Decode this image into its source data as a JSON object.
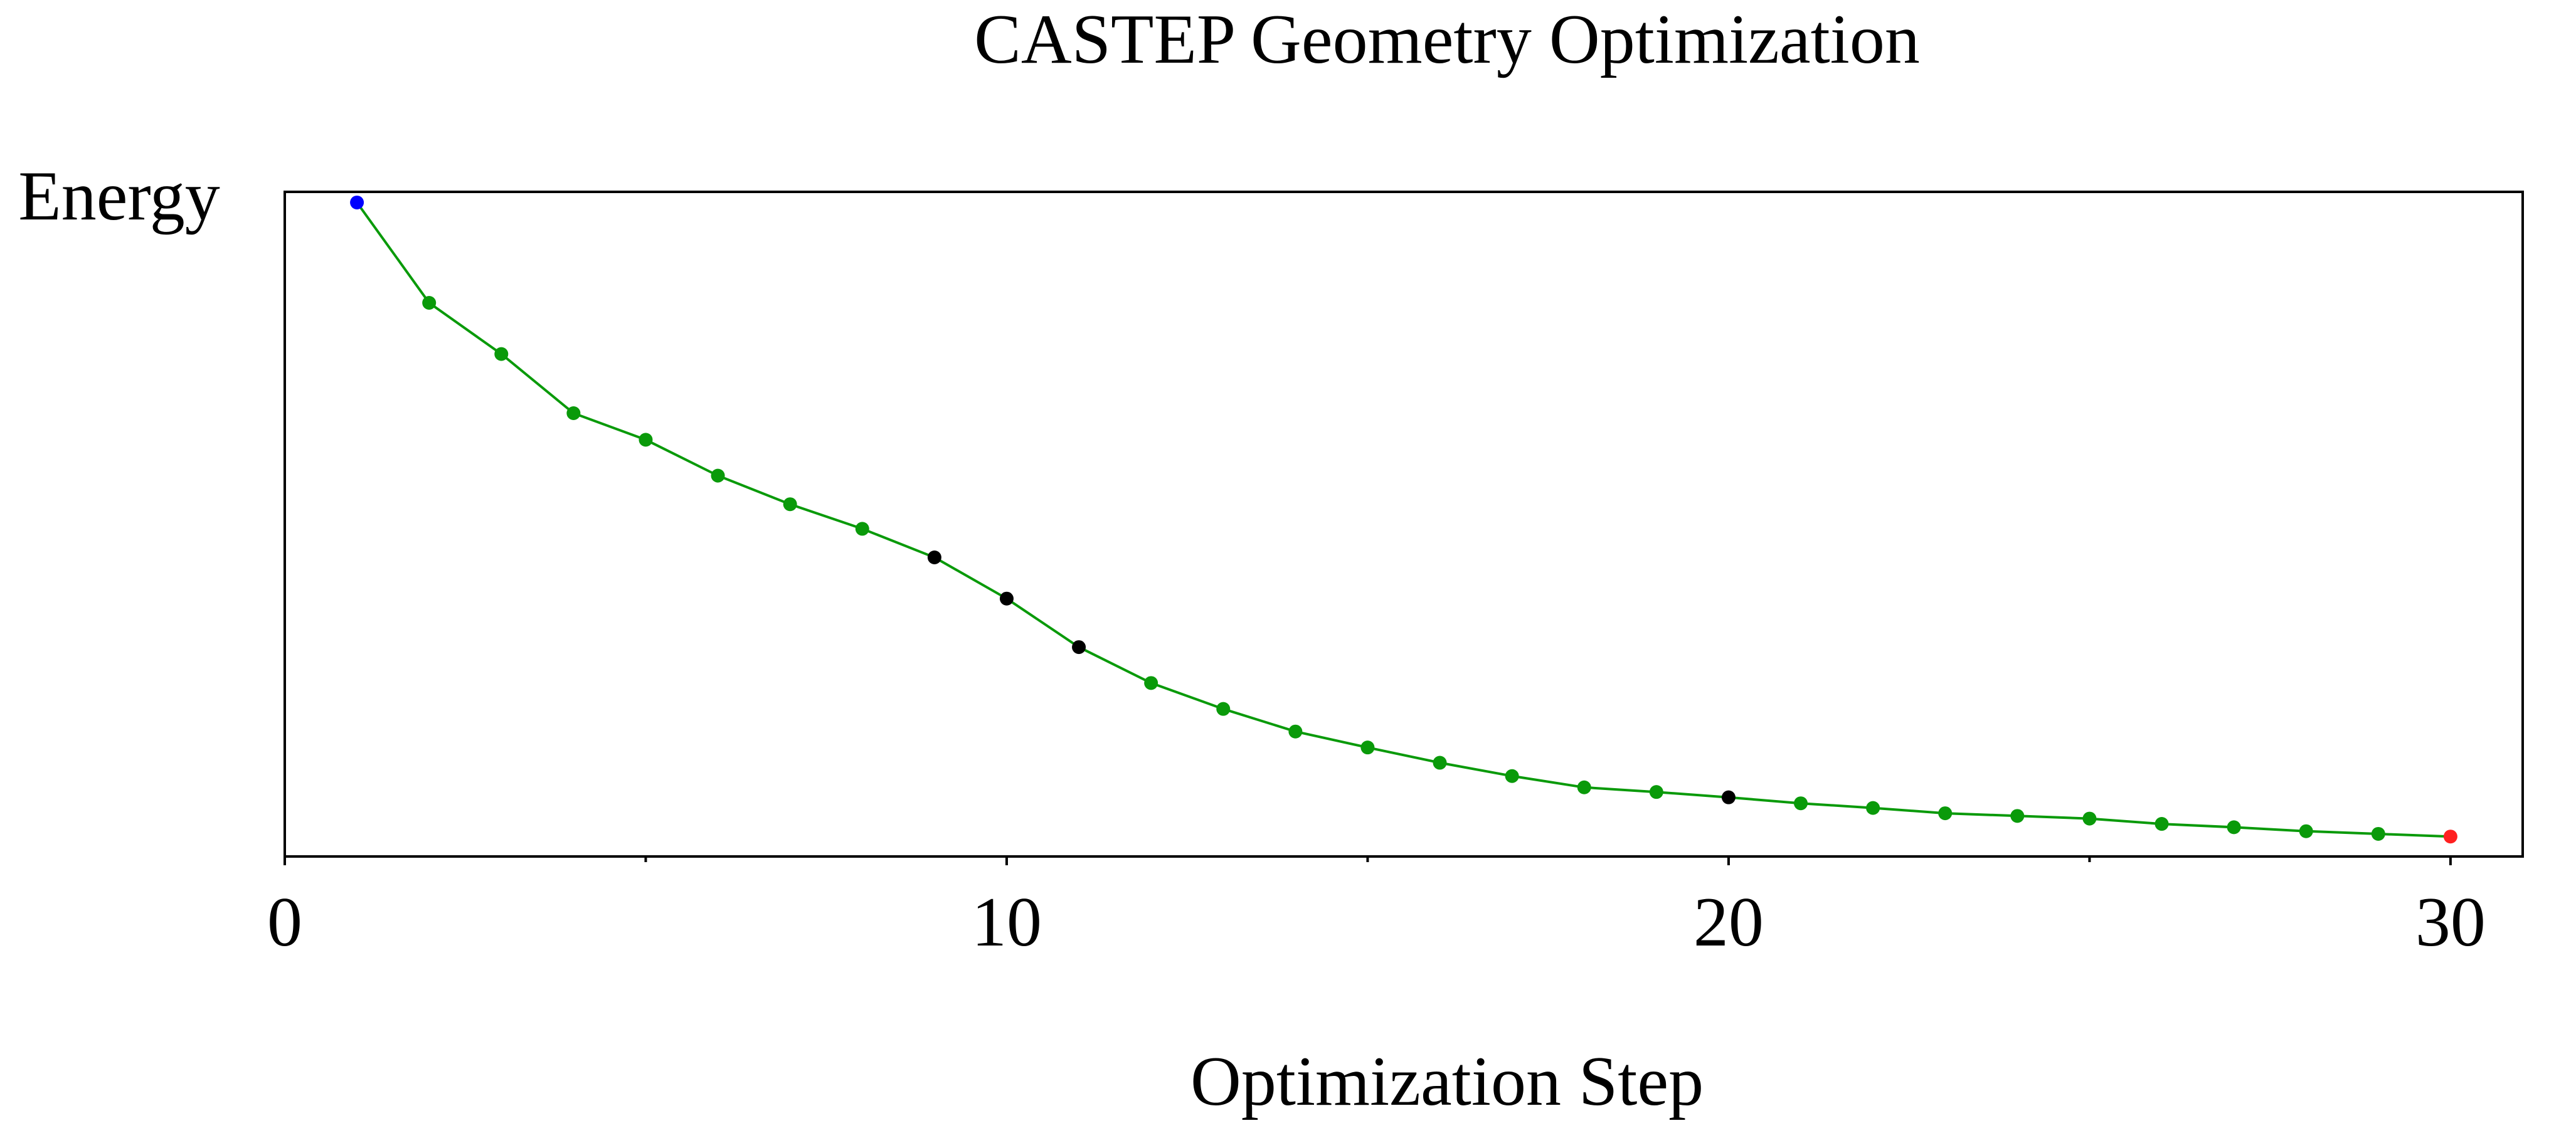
{
  "chart_data": {
    "type": "line",
    "title": "CASTEP Geometry Optimization",
    "xlabel": "Optimization Step",
    "ylabel": "Energy",
    "xlim": [
      0,
      31
    ],
    "ylim": [
      0,
      1
    ],
    "x_ticks": [
      0,
      10,
      20,
      30
    ],
    "x_minor_ticks": [
      5,
      15,
      25
    ],
    "y_tick_labels_shown": false,
    "grid": false,
    "series": [
      {
        "name": "Energy",
        "line_color": "#0a9a0a",
        "x": [
          1,
          2,
          3,
          4,
          5,
          6,
          7,
          8,
          9,
          10,
          11,
          12,
          13,
          14,
          15,
          16,
          17,
          18,
          19,
          20,
          21,
          22,
          23,
          24,
          25,
          26,
          27,
          28,
          29,
          30
        ],
        "values": [
          0.984,
          0.833,
          0.756,
          0.667,
          0.627,
          0.573,
          0.53,
          0.493,
          0.45,
          0.388,
          0.315,
          0.261,
          0.222,
          0.188,
          0.164,
          0.141,
          0.121,
          0.104,
          0.097,
          0.089,
          0.08,
          0.073,
          0.065,
          0.061,
          0.057,
          0.049,
          0.044,
          0.038,
          0.034,
          0.03
        ],
        "point_colors": [
          "#0000ff",
          "#0a9a0a",
          "#0a9a0a",
          "#0a9a0a",
          "#0a9a0a",
          "#0a9a0a",
          "#0a9a0a",
          "#0a9a0a",
          "#000000",
          "#000000",
          "#000000",
          "#0a9a0a",
          "#0a9a0a",
          "#0a9a0a",
          "#0a9a0a",
          "#0a9a0a",
          "#0a9a0a",
          "#0a9a0a",
          "#0a9a0a",
          "#000000",
          "#0a9a0a",
          "#0a9a0a",
          "#0a9a0a",
          "#0a9a0a",
          "#0a9a0a",
          "#0a9a0a",
          "#0a9a0a",
          "#0a9a0a",
          "#0a9a0a",
          "#ff2020"
        ]
      }
    ]
  }
}
